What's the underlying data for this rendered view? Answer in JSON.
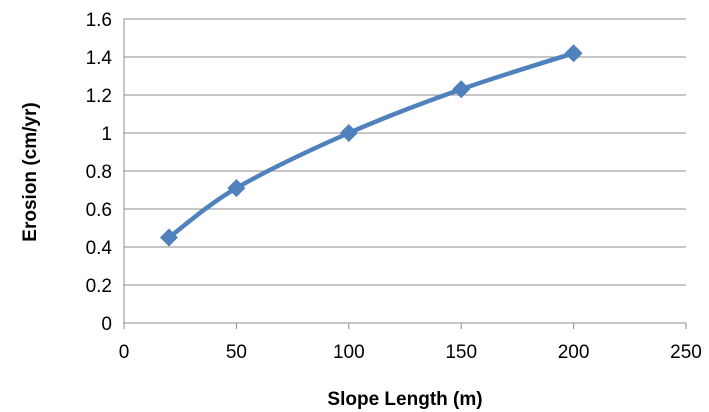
{
  "chart_data": {
    "type": "line",
    "title": "",
    "xlabel": "Slope Length (m)",
    "ylabel": "Erosion (cm/yr)",
    "xlim": [
      0,
      250
    ],
    "ylim": [
      0,
      1.6
    ],
    "x_ticks": [
      "0",
      "50",
      "100",
      "150",
      "200",
      "250"
    ],
    "y_ticks": [
      "0",
      "0.2",
      "0.4",
      "0.6",
      "0.8",
      "1",
      "1.2",
      "1.4",
      "1.6"
    ],
    "grid": "horizontal",
    "legend": "none",
    "smooth": true,
    "marker": "diamond",
    "color": "#4f81bd",
    "series": [
      {
        "x": [
          20,
          50,
          100,
          150,
          200
        ],
        "y": [
          0.45,
          0.71,
          1.0,
          1.23,
          1.42
        ]
      }
    ]
  }
}
